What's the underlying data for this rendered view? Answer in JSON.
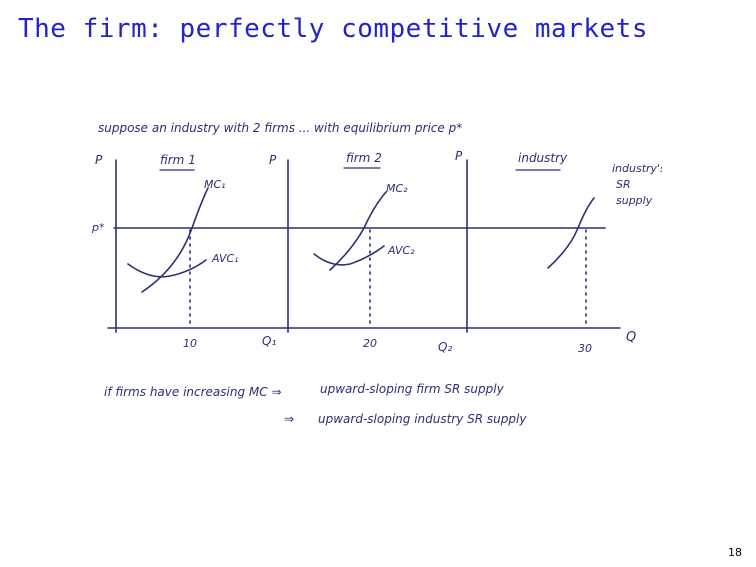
{
  "slide": {
    "title": "The firm: perfectly competitive markets",
    "page_number": "18"
  },
  "sketch": {
    "ink_color": "#2c2f74",
    "intro": "suppose an industry with 2 firms ... with equilibrium price p*",
    "price_axis_label": "P",
    "price_level_label": "p*",
    "panels": [
      {
        "title": "firm 1",
        "mc_label": "MC₁",
        "avc_label": "AVC₁",
        "quantity_tick": "10",
        "q_axis_label": "Q₁"
      },
      {
        "title": "firm 2",
        "mc_label": "MC₂",
        "avc_label": "AVC₂",
        "quantity_tick": "20",
        "q_axis_label": "Q₂"
      },
      {
        "title": "industry",
        "supply_label": [
          "industry's",
          "SR",
          "supply"
        ],
        "quantity_tick": "30",
        "q_axis_label": "Q"
      }
    ],
    "conclusion": [
      {
        "lead": "if firms have increasing MC ⇒",
        "text": "upward-sloping firm SR supply"
      },
      {
        "lead": "⇒",
        "text": "upward-sloping industry SR supply"
      }
    ]
  }
}
